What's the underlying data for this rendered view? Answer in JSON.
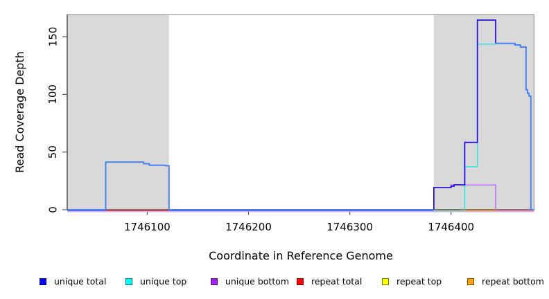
{
  "chart_data": {
    "type": "line",
    "subtype": "step-coverage-plot",
    "title": "",
    "xlabel": "Coordinate in Reference Genome",
    "ylabel": "Read Coverage Depth",
    "xlim": [
      1746021,
      1746482
    ],
    "ylim": [
      0,
      169.2
    ],
    "x_ticks": [
      1746100,
      1746200,
      1746300,
      1746400
    ],
    "y_ticks": [
      0,
      50,
      100,
      150
    ],
    "grid": false,
    "legend_position": "bottom",
    "plot_bg_color": "#ffffff",
    "shaded_region_color": "#d9d9d9",
    "shaded_regions": [
      {
        "x0": 1746021,
        "x1": 1746121.5
      },
      {
        "x0": 1746383,
        "x1": 1746482
      }
    ],
    "series": [
      {
        "name": "unique-bottom",
        "legend": "unique bottom",
        "color": "#bb6cf2",
        "width": 1.5,
        "points": [
          [
            1746399,
            21.4
          ],
          [
            1746444,
            21.4
          ],
          [
            1746444,
            0
          ]
        ]
      },
      {
        "name": "unique-top",
        "legend": "unique top",
        "color": "#2ee8e8",
        "width": 1.5,
        "points": [
          [
            1746413.5,
            0
          ],
          [
            1746413.5,
            37.2
          ],
          [
            1746426,
            37.2
          ],
          [
            1746426,
            143.6
          ],
          [
            1746444,
            143.6
          ]
        ]
      },
      {
        "name": "unique-total-right",
        "legend": "unique total",
        "color": "#2912e0",
        "width": 1.8,
        "points": [
          [
            1746383,
            0
          ],
          [
            1746383,
            19.2
          ],
          [
            1746400,
            19.2
          ],
          [
            1746400,
            20.4
          ],
          [
            1746403,
            20.4
          ],
          [
            1746403,
            21.6
          ],
          [
            1746413.5,
            21.6
          ],
          [
            1746413.5,
            58.4
          ],
          [
            1746426,
            58.4
          ],
          [
            1746426,
            164.4
          ],
          [
            1746444,
            164.4
          ],
          [
            1746444,
            144.2
          ]
        ]
      },
      {
        "name": "unique-total-top-merged-left",
        "legend": "unique total",
        "color": "#4583f2",
        "width": 2,
        "points": [
          [
            1746021,
            0
          ],
          [
            1746059,
            0
          ],
          [
            1746059,
            41.3
          ],
          [
            1746096.5,
            41.3
          ],
          [
            1746096.5,
            39.9
          ],
          [
            1746102,
            39.9
          ],
          [
            1746102,
            38.6
          ],
          [
            1746118,
            38.6
          ],
          [
            1746118,
            38.1
          ],
          [
            1746121.5,
            38.1
          ],
          [
            1746121.5,
            0
          ],
          [
            1746383,
            0
          ]
        ]
      },
      {
        "name": "unique-total-top-merged-right",
        "legend": "unique total",
        "color": "#4583f2",
        "width": 2,
        "points": [
          [
            1746444,
            144.2
          ],
          [
            1746463,
            144.2
          ],
          [
            1746463,
            142.8
          ],
          [
            1746468.5,
            142.8
          ],
          [
            1746468.5,
            141
          ],
          [
            1746474,
            141
          ],
          [
            1746474,
            104
          ],
          [
            1746475.5,
            104
          ],
          [
            1746475.5,
            101
          ],
          [
            1746477,
            101
          ],
          [
            1746477,
            98.5
          ],
          [
            1746478.8,
            98.5
          ],
          [
            1746478.8,
            0
          ],
          [
            1746482,
            0
          ]
        ]
      }
    ],
    "zero_level_segments": [
      {
        "name": "zero-unique-left",
        "x0": 1746021,
        "x1": 1746059,
        "color": "#5b65ee"
      },
      {
        "name": "zero-repeat-total-left",
        "x0": 1746059,
        "x1": 1746121.5,
        "color": "#e84040"
      },
      {
        "name": "zero-unique-middle",
        "x0": 1746121.5,
        "x1": 1746383,
        "color": "#5b65ee"
      },
      {
        "name": "zero-repeat-top",
        "x0": 1746383.5,
        "x1": 1746413,
        "color": "#7fd07f"
      },
      {
        "name": "zero-repeat-bottom",
        "x0": 1746413.5,
        "x1": 1746444,
        "color": "#ff9e1a"
      },
      {
        "name": "zero-repeat-total-right",
        "x0": 1746444,
        "x1": 1746482,
        "color": "#f07f92"
      }
    ],
    "zero_underline": {
      "x0": 1746021,
      "x1": 1746482,
      "color": "#c9a4f4"
    },
    "legend": [
      {
        "label": "unique total",
        "color": "#0000ff"
      },
      {
        "label": "unique top",
        "color": "#00ffff"
      },
      {
        "label": "unique bottom",
        "color": "#a020f0"
      },
      {
        "label": "repeat total",
        "color": "#ff0000"
      },
      {
        "label": "repeat top",
        "color": "#ffff00"
      },
      {
        "label": "repeat bottom",
        "color": "#ffa500"
      }
    ],
    "frame_color": "#9a9a9a",
    "axis_color": "#444444",
    "tick_color": "#555555",
    "tick_label_color": "#000000"
  }
}
